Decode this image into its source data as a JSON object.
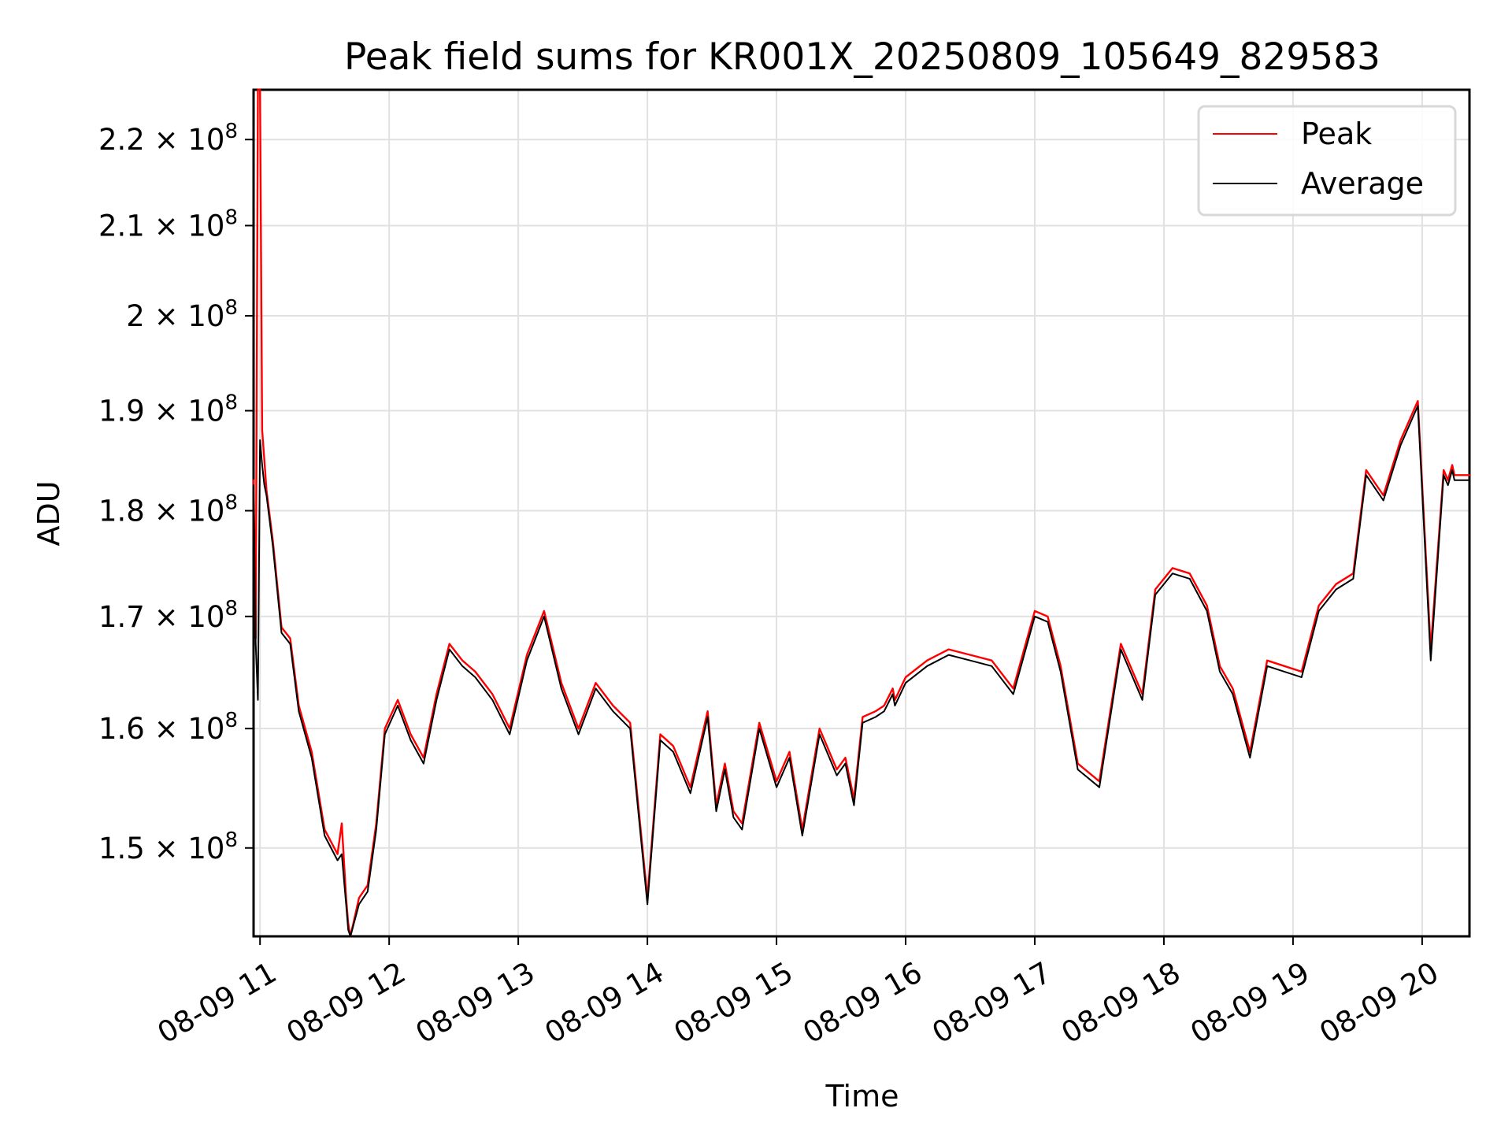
{
  "chart_data": {
    "type": "line",
    "title": "Peak field sums for KR001X_20250809_105649_829583",
    "xlabel": "Time",
    "ylabel": "ADU",
    "yscale": "log",
    "xlim": [
      "08-09 10:57",
      "08-09 20:22"
    ],
    "ylim": [
      143000000,
      226000000
    ],
    "grid": true,
    "legend_position": "top-right",
    "x_ticks": [
      {
        "value": "08-09 11:00",
        "label": "08-09 11"
      },
      {
        "value": "08-09 12:00",
        "label": "08-09 12"
      },
      {
        "value": "08-09 13:00",
        "label": "08-09 13"
      },
      {
        "value": "08-09 14:00",
        "label": "08-09 14"
      },
      {
        "value": "08-09 15:00",
        "label": "08-09 15"
      },
      {
        "value": "08-09 16:00",
        "label": "08-09 16"
      },
      {
        "value": "08-09 17:00",
        "label": "08-09 17"
      },
      {
        "value": "08-09 18:00",
        "label": "08-09 18"
      },
      {
        "value": "08-09 19:00",
        "label": "08-09 19"
      },
      {
        "value": "08-09 20:00",
        "label": "08-09 20"
      }
    ],
    "y_ticks": [
      {
        "value": 150000000,
        "mantissa": "1.5",
        "exponent": "8"
      },
      {
        "value": 160000000,
        "mantissa": "1.6",
        "exponent": "8"
      },
      {
        "value": 170000000,
        "mantissa": "1.7",
        "exponent": "8"
      },
      {
        "value": 180000000,
        "mantissa": "1.8",
        "exponent": "8"
      },
      {
        "value": 190000000,
        "mantissa": "1.9",
        "exponent": "8"
      },
      {
        "value": 200000000,
        "mantissa": "2",
        "exponent": "8"
      },
      {
        "value": 210000000,
        "mantissa": "2.1",
        "exponent": "8"
      },
      {
        "value": 220000000,
        "mantissa": "2.2",
        "exponent": "8"
      }
    ],
    "series": [
      {
        "name": "Peak",
        "color": "#ff0000",
        "x": [
          "08-09 10:57",
          "08-09 10:58",
          "08-09 10:59",
          "08-09 11:00",
          "08-09 11:01",
          "08-09 11:02",
          "08-09 11:03",
          "08-09 11:06",
          "08-09 11:10",
          "08-09 11:14",
          "08-09 11:18",
          "08-09 11:24",
          "08-09 11:30",
          "08-09 11:36",
          "08-09 11:38",
          "08-09 11:40",
          "08-09 11:41",
          "08-09 11:42",
          "08-09 11:46",
          "08-09 11:50",
          "08-09 11:54",
          "08-09 11:58",
          "08-09 12:04",
          "08-09 12:10",
          "08-09 12:16",
          "08-09 12:22",
          "08-09 12:28",
          "08-09 12:34",
          "08-09 12:40",
          "08-09 12:48",
          "08-09 12:56",
          "08-09 13:04",
          "08-09 13:12",
          "08-09 13:20",
          "08-09 13:28",
          "08-09 13:36",
          "08-09 13:44",
          "08-09 13:52",
          "08-09 14:00",
          "08-09 14:06",
          "08-09 14:12",
          "08-09 14:20",
          "08-09 14:28",
          "08-09 14:32",
          "08-09 14:36",
          "08-09 14:40",
          "08-09 14:44",
          "08-09 14:52",
          "08-09 15:00",
          "08-09 15:06",
          "08-09 15:12",
          "08-09 15:20",
          "08-09 15:28",
          "08-09 15:32",
          "08-09 15:36",
          "08-09 15:40",
          "08-09 15:46",
          "08-09 15:50",
          "08-09 15:54",
          "08-09 15:55",
          "08-09 16:00",
          "08-09 16:10",
          "08-09 16:20",
          "08-09 16:30",
          "08-09 16:40",
          "08-09 16:50",
          "08-09 17:00",
          "08-09 17:06",
          "08-09 17:12",
          "08-09 17:20",
          "08-09 17:30",
          "08-09 17:40",
          "08-09 17:50",
          "08-09 17:56",
          "08-09 18:04",
          "08-09 18:12",
          "08-09 18:20",
          "08-09 18:26",
          "08-09 18:32",
          "08-09 18:40",
          "08-09 18:48",
          "08-09 18:56",
          "08-09 19:04",
          "08-09 19:12",
          "08-09 19:20",
          "08-09 19:28",
          "08-09 19:34",
          "08-09 19:42",
          "08-09 19:50",
          "08-09 19:58",
          "08-09 20:04",
          "08-09 20:10",
          "08-09 20:12",
          "08-09 20:14",
          "08-09 20:15",
          "08-09 20:16",
          "08-09 20:18",
          "08-09 20:20",
          "08-09 20:22"
        ],
        "values": [
          183000000,
          168000000,
          226000000,
          226000000,
          188000000,
          185000000,
          182000000,
          177000000,
          169000000,
          168000000,
          162000000,
          158000000,
          151500000,
          149500000,
          152000000,
          146000000,
          144000000,
          143000000,
          146000000,
          147000000,
          152000000,
          160000000,
          162500000,
          159500000,
          157500000,
          163000000,
          167500000,
          166000000,
          165000000,
          163000000,
          160000000,
          166500000,
          170500000,
          164000000,
          160000000,
          164000000,
          162000000,
          160500000,
          146000000,
          159500000,
          158500000,
          155000000,
          161500000,
          153500000,
          157000000,
          153000000,
          152000000,
          160500000,
          155500000,
          158000000,
          151500000,
          160000000,
          156500000,
          157500000,
          154000000,
          161000000,
          161500000,
          162000000,
          163500000,
          162500000,
          164500000,
          166000000,
          167000000,
          166500000,
          166000000,
          163500000,
          170500000,
          170000000,
          165500000,
          157000000,
          155500000,
          167500000,
          163000000,
          172500000,
          174500000,
          174000000,
          171000000,
          165500000,
          163500000,
          158000000,
          166000000,
          165500000,
          165000000,
          171000000,
          173000000,
          174000000,
          184000000,
          181500000,
          187000000,
          191000000,
          167000000,
          184000000,
          183000000,
          184500000,
          183500000,
          183500000,
          183500000,
          183500000,
          183500000
        ]
      },
      {
        "name": "Average",
        "color": "#000000",
        "x": [
          "08-09 10:57",
          "08-09 10:58",
          "08-09 10:59",
          "08-09 11:00",
          "08-09 11:01",
          "08-09 11:02",
          "08-09 11:03",
          "08-09 11:06",
          "08-09 11:10",
          "08-09 11:14",
          "08-09 11:18",
          "08-09 11:24",
          "08-09 11:30",
          "08-09 11:36",
          "08-09 11:38",
          "08-09 11:40",
          "08-09 11:41",
          "08-09 11:42",
          "08-09 11:46",
          "08-09 11:50",
          "08-09 11:54",
          "08-09 11:58",
          "08-09 12:04",
          "08-09 12:10",
          "08-09 12:16",
          "08-09 12:22",
          "08-09 12:28",
          "08-09 12:34",
          "08-09 12:40",
          "08-09 12:48",
          "08-09 12:56",
          "08-09 13:04",
          "08-09 13:12",
          "08-09 13:20",
          "08-09 13:28",
          "08-09 13:36",
          "08-09 13:44",
          "08-09 13:52",
          "08-09 14:00",
          "08-09 14:06",
          "08-09 14:12",
          "08-09 14:20",
          "08-09 14:28",
          "08-09 14:32",
          "08-09 14:36",
          "08-09 14:40",
          "08-09 14:44",
          "08-09 14:52",
          "08-09 15:00",
          "08-09 15:06",
          "08-09 15:12",
          "08-09 15:20",
          "08-09 15:28",
          "08-09 15:32",
          "08-09 15:36",
          "08-09 15:40",
          "08-09 15:46",
          "08-09 15:50",
          "08-09 15:54",
          "08-09 15:55",
          "08-09 16:00",
          "08-09 16:10",
          "08-09 16:20",
          "08-09 16:30",
          "08-09 16:40",
          "08-09 16:50",
          "08-09 17:00",
          "08-09 17:06",
          "08-09 17:12",
          "08-09 17:20",
          "08-09 17:30",
          "08-09 17:40",
          "08-09 17:50",
          "08-09 17:56",
          "08-09 18:04",
          "08-09 18:12",
          "08-09 18:20",
          "08-09 18:26",
          "08-09 18:32",
          "08-09 18:40",
          "08-09 18:48",
          "08-09 18:56",
          "08-09 19:04",
          "08-09 19:12",
          "08-09 19:20",
          "08-09 19:28",
          "08-09 19:34",
          "08-09 19:42",
          "08-09 19:50",
          "08-09 19:58",
          "08-09 20:04",
          "08-09 20:10",
          "08-09 20:12",
          "08-09 20:14",
          "08-09 20:15",
          "08-09 20:16",
          "08-09 20:18",
          "08-09 20:20",
          "08-09 20:22"
        ],
        "values": [
          182500000,
          167500000,
          162500000,
          187000000,
          184500000,
          182500000,
          181500000,
          176500000,
          168500000,
          167500000,
          161500000,
          157500000,
          151000000,
          149000000,
          149500000,
          145500000,
          143500000,
          143000000,
          145500000,
          146500000,
          151500000,
          159500000,
          162000000,
          159000000,
          157000000,
          162500000,
          167000000,
          165500000,
          164500000,
          162500000,
          159500000,
          166000000,
          170000000,
          163500000,
          159500000,
          163500000,
          161500000,
          160000000,
          145500000,
          159000000,
          158000000,
          154500000,
          161000000,
          153000000,
          156500000,
          152500000,
          151500000,
          160000000,
          155000000,
          157500000,
          151000000,
          159500000,
          156000000,
          157000000,
          153500000,
          160500000,
          161000000,
          161500000,
          163000000,
          162000000,
          164000000,
          165500000,
          166500000,
          166000000,
          165500000,
          163000000,
          170000000,
          169500000,
          165000000,
          156500000,
          155000000,
          167000000,
          162500000,
          172000000,
          174000000,
          173500000,
          170500000,
          165000000,
          163000000,
          157500000,
          165500000,
          165000000,
          164500000,
          170500000,
          172500000,
          173500000,
          183500000,
          181000000,
          186500000,
          190500000,
          166000000,
          183500000,
          182500000,
          184000000,
          183000000,
          183000000,
          183000000,
          183000000,
          183000000
        ]
      }
    ]
  }
}
